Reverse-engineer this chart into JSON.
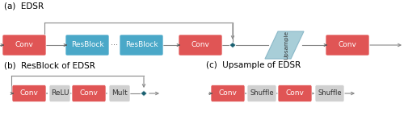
{
  "red_color": "#e05555",
  "blue_color": "#4aa8c8",
  "gray_color": "#d0d0d0",
  "upsample_color": "#a8ced8",
  "diamond_color": "#1a6070",
  "line_color": "#888888",
  "dot_color": "#555555",
  "label_fontsize": 6.5,
  "title_fontsize": 7.5,
  "title_a": "(a)  EDSR",
  "title_b": "(b)  ResBlock of EDSR",
  "title_c": "(c)  Upsample of EDSR"
}
